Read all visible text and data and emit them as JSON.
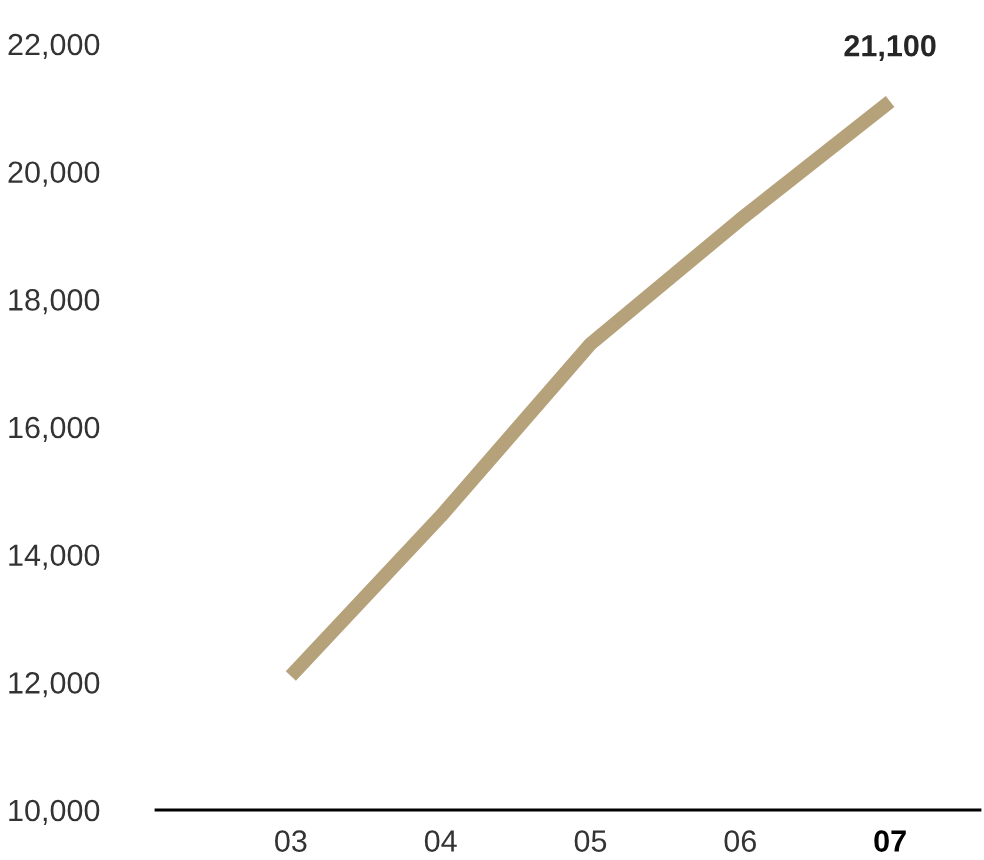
{
  "chart_data": {
    "type": "line",
    "categories": [
      "03",
      "04",
      "05",
      "06",
      "07"
    ],
    "series": [
      {
        "color": "#b5a27a",
        "values": [
          12100,
          14600,
          17300,
          19250,
          21100
        ]
      }
    ],
    "ylim": [
      10000,
      22000
    ],
    "yticks": [
      {
        "value": 10000,
        "label": "10,000"
      },
      {
        "value": 12000,
        "label": "12,000"
      },
      {
        "value": 14000,
        "label": "14,000"
      },
      {
        "value": 16000,
        "label": "16,000"
      },
      {
        "value": 18000,
        "label": "18,000"
      },
      {
        "value": 20000,
        "label": "20,000"
      },
      {
        "value": 22000,
        "label": "22,000"
      }
    ],
    "annotations": [
      {
        "text": "21,100",
        "x": "07",
        "y": 21100
      }
    ],
    "grid": false,
    "legend": false,
    "marker": "none",
    "line_style": "solid"
  }
}
